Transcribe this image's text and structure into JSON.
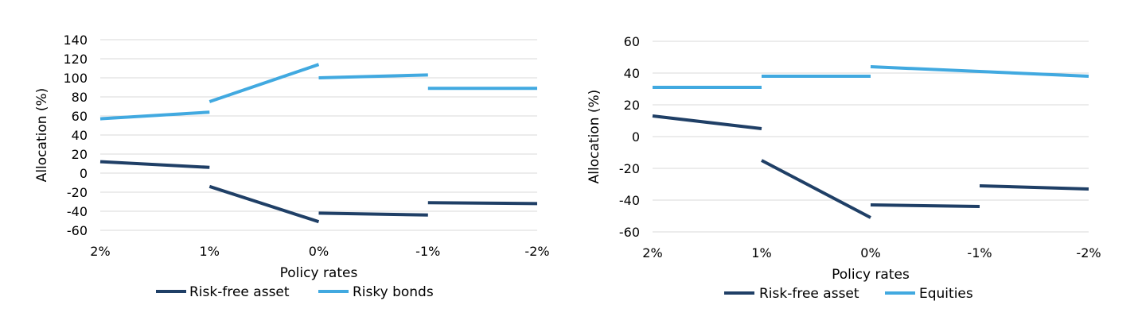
{
  "chart_data": [
    {
      "type": "line",
      "title": "",
      "xlabel": "Policy rates",
      "ylabel": "Allocation (%)",
      "categories": [
        "2%",
        "1%",
        "0%",
        "-1%",
        "-2%"
      ],
      "ylim": [
        -60,
        140
      ],
      "ytick_step": 20,
      "yticks": [
        "140",
        "120",
        "100",
        "80",
        "60",
        "40",
        "20",
        "0",
        "-20",
        "-40",
        "-60"
      ],
      "grid": true,
      "legend": "bottom",
      "series": [
        {
          "name": "Risk-free asset",
          "color": "#1f3f66",
          "segments": [
            [
              [
                0,
                12
              ],
              [
                1,
                6
              ]
            ],
            [
              [
                1,
                -14
              ],
              [
                2,
                -51
              ]
            ],
            [
              [
                2,
                -42
              ],
              [
                3,
                -44
              ]
            ],
            [
              [
                3,
                -31
              ],
              [
                4,
                -32
              ]
            ]
          ]
        },
        {
          "name": "Risky bonds",
          "color": "#41a9e0",
          "segments": [
            [
              [
                0,
                57
              ],
              [
                1,
                64
              ]
            ],
            [
              [
                1,
                75
              ],
              [
                2,
                114
              ]
            ],
            [
              [
                2,
                100
              ],
              [
                3,
                103
              ]
            ],
            [
              [
                3,
                89
              ],
              [
                4,
                89
              ]
            ]
          ]
        }
      ]
    },
    {
      "type": "line",
      "title": "",
      "xlabel": "Policy rates",
      "ylabel": "Allocation (%)",
      "categories": [
        "2%",
        "1%",
        "0%",
        "-1%",
        "-2%"
      ],
      "ylim": [
        -60,
        60
      ],
      "ytick_step": 20,
      "yticks": [
        "60",
        "40",
        "20",
        "0",
        "-20",
        "-40",
        "-60"
      ],
      "grid": true,
      "legend": "bottom",
      "series": [
        {
          "name": "Risk-free asset",
          "color": "#1f3f66",
          "segments": [
            [
              [
                0,
                13
              ],
              [
                1,
                5
              ]
            ],
            [
              [
                1,
                -15
              ],
              [
                2,
                -51
              ]
            ],
            [
              [
                2,
                -43
              ],
              [
                3,
                -44
              ]
            ],
            [
              [
                3,
                -31
              ],
              [
                4,
                -33
              ]
            ]
          ]
        },
        {
          "name": "Equities",
          "color": "#41a9e0",
          "segments": [
            [
              [
                0,
                31
              ],
              [
                1,
                31
              ]
            ],
            [
              [
                1,
                38
              ],
              [
                2,
                38
              ]
            ],
            [
              [
                2,
                44
              ],
              [
                4,
                38
              ]
            ]
          ]
        }
      ]
    }
  ]
}
